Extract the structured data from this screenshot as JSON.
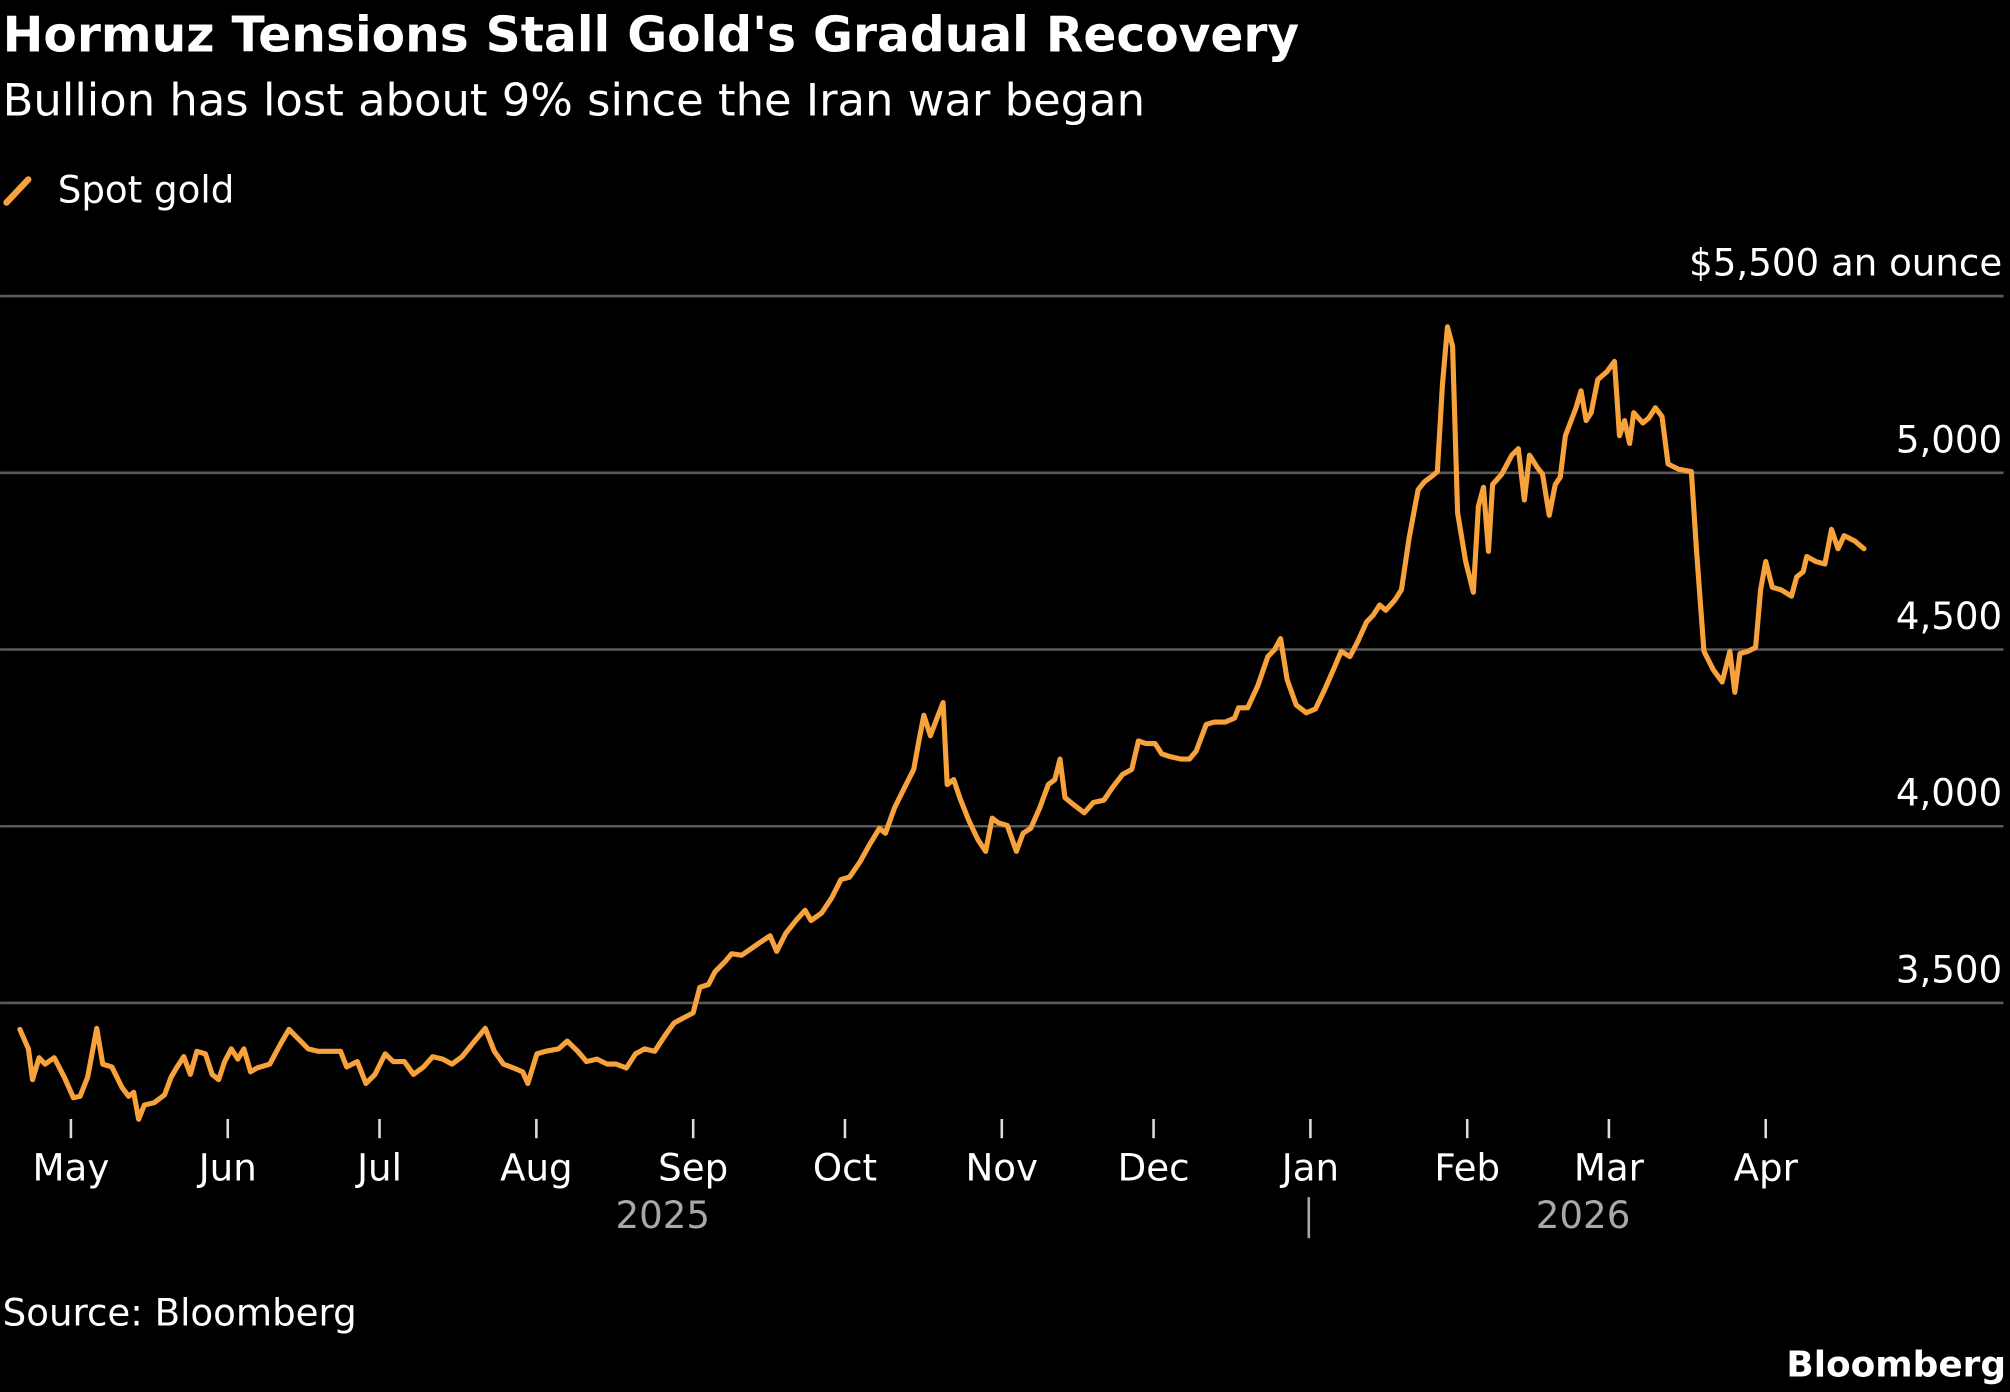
{
  "chart_data": {
    "type": "line",
    "title": "Hormuz Tensions Stall Gold's Gradual Recovery",
    "subtitle": "Bullion has lost about 9% since the Iran war began",
    "source": "Source: Bloomberg",
    "credit": "Bloomberg",
    "x": [
      -10.1,
      -8.4,
      -7.6,
      -6.3,
      -5.1,
      -3.3,
      -1.3,
      0.5,
      1.8,
      3.3,
      5.1,
      6.3,
      8.1,
      10.1,
      11.4,
      12.4,
      13.4,
      14.5,
      16.5,
      18.5,
      19.8,
      21.0,
      22.3,
      23.6,
      24.9,
      26.6,
      27.9,
      29.2,
      30.4,
      31.7,
      33.0,
      34.2,
      35.5,
      36.8,
      39.3,
      41.3,
      43.1,
      44.9,
      46.9,
      48.9,
      50.7,
      53.3,
      54.5,
      56.6,
      58.3,
      60.1,
      62.1,
      63.7,
      65.9,
      67.7,
      69.7,
      71.5,
      73.5,
      75.3,
      77.3,
      79.4,
      81.9,
      83.7,
      85.5,
      87.5,
      89.3,
      90.3,
      92.1,
      93.8,
      96.4,
      98.1,
      100.2,
      101.9,
      104.0,
      106.0,
      107.8,
      109.8,
      111.6,
      113.4,
      115.4,
      117.4,
      119.2,
      121.0,
      123.0,
      124.3,
      126.0,
      127.3,
      129.3,
      130.6,
      132.6,
      134.4,
      136.2,
      138.2,
      139.5,
      141.3,
      143.3,
      145.1,
      146.3,
      148.4,
      150.4,
      152.2,
      153.9,
      156.0,
      157.7,
      159.8,
      161.0,
      162.8,
      164.8,
      166.6,
      167.6,
      168.6,
      169.9,
      171.2,
      172.4,
      173.2,
      174.5,
      175.7,
      177.5,
      179.3,
      180.8,
      182.1,
      183.4,
      185.1,
      186.9,
      188.2,
      189.7,
      191.5,
      193.2,
      194.5,
      195.5,
      196.5,
      198.3,
      200.3,
      202.1,
      204.2,
      205.9,
      207.9,
      209.7,
      211.0,
      212.5,
      214.3,
      215.6,
      217.3,
      219.4,
      221.1,
      222.4,
      224.4,
      226.0,
      228.2,
      230.0,
      230.8,
      232.6,
      234.6,
      236.6,
      237.9,
      239.1,
      240.4,
      242.2,
      244.2,
      246.0,
      247.8,
      249.8,
      251.1,
      252.8,
      254.4,
      256.1,
      257.4,
      258.7,
      259.9,
      261.7,
      263.0,
      264.5,
      266.3,
      267.5,
      268.8,
      270.1,
      271.1,
      272.1,
      273.1,
      274.1,
      275.7,
      277.2,
      278.2,
      279.2,
      280.2,
      281.0,
      282.8,
      284.8,
      286.1,
      287.3,
      288.3,
      289.9,
      290.9,
      292.2,
      293.4,
      294.4,
      295.4,
      297.5,
      298.5,
      299.5,
      300.5,
      301.8,
      303.6,
      305.1,
      306.1,
      307.1,
      308.1,
      308.9,
      310.7,
      311.9,
      313.2,
      314.5,
      315.7,
      317.8,
      320.3,
      321.3,
      322.8,
      324.6,
      326.4,
      327.9,
      328.9,
      329.9,
      331.5,
      333.0,
      334.0,
      335.0,
      336.3,
      338.0,
      340.1,
      341.1,
      342.4,
      343.1,
      344.9,
      346.7,
      348.0,
      349.3,
      350.5,
      352.6,
      354.4
    ],
    "series": [
      {
        "name": "Spot gold",
        "color": "#f7a23b",
        "values": [
          3425,
          3370,
          3283,
          3345,
          3327,
          3345,
          3290,
          3232,
          3236,
          3290,
          3428,
          3327,
          3319,
          3261,
          3236,
          3247,
          3171,
          3211,
          3218,
          3240,
          3290,
          3319,
          3348,
          3298,
          3363,
          3356,
          3298,
          3283,
          3334,
          3370,
          3341,
          3370,
          3305,
          3316,
          3327,
          3381,
          3425,
          3399,
          3370,
          3363,
          3363,
          3363,
          3319,
          3334,
          3272,
          3298,
          3356,
          3334,
          3334,
          3298,
          3319,
          3348,
          3341,
          3327,
          3348,
          3385,
          3428,
          3363,
          3327,
          3316,
          3305,
          3272,
          3356,
          3363,
          3370,
          3392,
          3363,
          3334,
          3341,
          3327,
          3327,
          3316,
          3356,
          3370,
          3363,
          3407,
          3443,
          3457,
          3472,
          3544,
          3552,
          3588,
          3617,
          3639,
          3635,
          3653,
          3671,
          3690,
          3646,
          3697,
          3733,
          3762,
          3733,
          3755,
          3798,
          3849,
          3856,
          3900,
          3944,
          3994,
          3980,
          4052,
          4110,
          4161,
          4241,
          4314,
          4256,
          4306,
          4350,
          4118,
          4132,
          4081,
          4016,
          3962,
          3929,
          4023,
          4009,
          4002,
          3929,
          3980,
          3994,
          4052,
          4118,
          4132,
          4190,
          4081,
          4060,
          4038,
          4067,
          4074,
          4110,
          4147,
          4161,
          4241,
          4234,
          4234,
          4205,
          4197,
          4190,
          4190,
          4212,
          4288,
          4295,
          4295,
          4306,
          4335,
          4335,
          4397,
          4480,
          4499,
          4531,
          4415,
          4343,
          4321,
          4332,
          4386,
          4451,
          4495,
          4480,
          4524,
          4578,
          4597,
          4626,
          4611,
          4640,
          4669,
          4814,
          4952,
          4974,
          4988,
          5003,
          5250,
          5413,
          5358,
          4887,
          4749,
          4662,
          4905,
          4959,
          4778,
          4967,
          4996,
          5050,
          5068,
          4923,
          5050,
          5014,
          4996,
          4880,
          4967,
          4988,
          5105,
          5184,
          5232,
          5148,
          5170,
          5264,
          5286,
          5315,
          5105,
          5148,
          5083,
          5170,
          5141,
          5155,
          5184,
          5159,
          5025,
          5010,
          5003,
          4785,
          4495,
          4444,
          4408,
          4495,
          4379,
          4488,
          4495,
          4506,
          4669,
          4749,
          4676,
          4669,
          4651,
          4705,
          4720,
          4763,
          4749,
          4742,
          4840,
          4785,
          4822,
          4807,
          4785
        ]
      }
    ],
    "xlim": [
      -14,
      382
    ],
    "ylim": [
      3110,
      5500
    ],
    "xticks": [
      {
        "value": 0,
        "label": "May"
      },
      {
        "value": 31,
        "label": "Jun"
      },
      {
        "value": 61,
        "label": "Jul"
      },
      {
        "value": 92,
        "label": "Aug"
      },
      {
        "value": 123,
        "label": "Sep"
      },
      {
        "value": 153,
        "label": "Oct"
      },
      {
        "value": 184,
        "label": "Nov"
      },
      {
        "value": 214,
        "label": "Dec"
      },
      {
        "value": 245,
        "label": "Jan"
      },
      {
        "value": 276,
        "label": "Feb"
      },
      {
        "value": 304,
        "label": "Mar"
      },
      {
        "value": 335,
        "label": "Apr"
      }
    ],
    "yticks": [
      {
        "value": 3500,
        "label": "3,500"
      },
      {
        "value": 4000,
        "label": "4,000"
      },
      {
        "value": 4500,
        "label": "4,500"
      },
      {
        "value": 5000,
        "label": "5,000"
      },
      {
        "value": 5500,
        "label": "$5,500 an ounce"
      }
    ],
    "years": [
      "2025",
      "2026"
    ],
    "grid": true
  }
}
